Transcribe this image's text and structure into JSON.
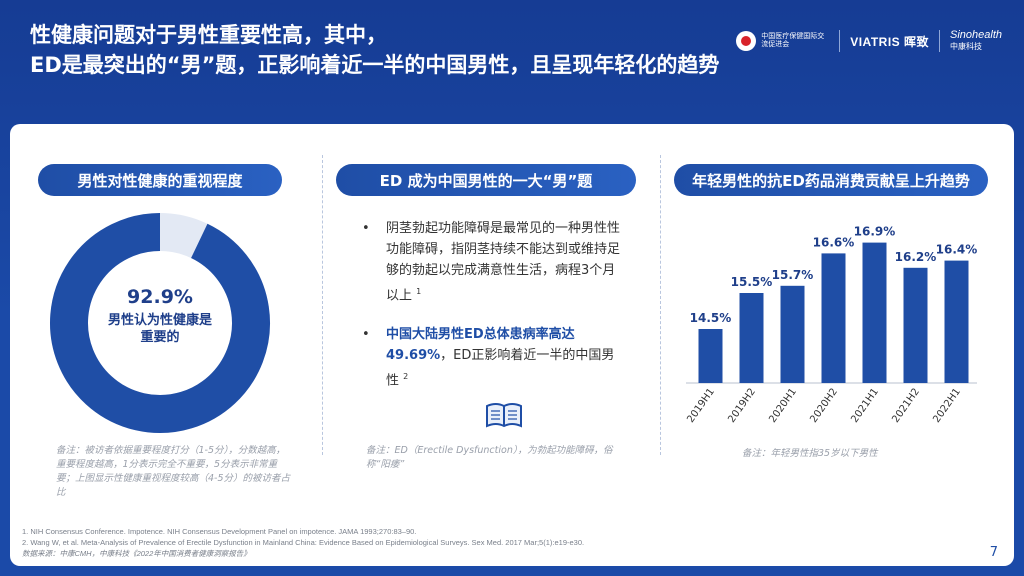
{
  "header": {
    "line1": "性健康问题对于男性重要性高，其中，",
    "line2": "ED是最突出的“男”题，正影响着近一半的中国男性，且呈现年轻化的趋势"
  },
  "logos": {
    "org_cn": "中国医疗保健国际交流促进会",
    "viatris": "VIATRIS 晖致",
    "sinohealth": "Sinohealth",
    "sinohealth_cn": "中康科技"
  },
  "left": {
    "title": "男性对性健康的重视程度",
    "value": "92.9%",
    "label": "男性认为性健康是重要的",
    "fraction": 0.929,
    "note": "备注：被访者依据重要程度打分（1-5分），分数越高，重要程度越高，1分表示完全不重要，5分表示非常重要；上图显示性健康重视程度较高（4-5分）的被访者占比"
  },
  "middle": {
    "title": "ED 成为中国男性的一大“男”题",
    "bullet1": "阴茎勃起功能障碍是最常见的一种男性性功能障碍，指阴茎持续不能达到或维持足够的勃起以完成满意性生活，病程3个月以上",
    "bullet1_ref": "1",
    "bullet2_hl": "中国大陆男性ED总体患病率高达49.69%",
    "bullet2_rest": "，ED正影响着近一半的中国男性",
    "bullet2_ref": "2",
    "note": "备注：ED（Erectile Dysfunction），为勃起功能障碍，俗称“阳痿”"
  },
  "right": {
    "title": "年轻男性的抗ED药品消费贡献呈上升趋势",
    "note": "备注：年轻男性指35岁以下男性"
  },
  "chart_data": {
    "type": "bar",
    "title": "年轻男性的抗ED药品消费贡献呈上升趋势",
    "categories": [
      "2019H1",
      "2019H2",
      "2020H1",
      "2020H2",
      "2021H1",
      "2021H2",
      "2022H1"
    ],
    "values": [
      14.5,
      15.5,
      15.7,
      16.6,
      16.9,
      16.2,
      16.4
    ],
    "value_labels": [
      "14.5%",
      "15.5%",
      "15.7%",
      "16.6%",
      "16.9%",
      "16.2%",
      "16.4%"
    ],
    "unit": "%",
    "ylim": [
      13,
      17.5
    ],
    "grid": false,
    "color": "#1f4ea6"
  },
  "footer": {
    "ref1": "1. NIH Consensus Conference. Impotence. NIH Consensus Development Panel on impotence. JAMA 1993;270:83–90.",
    "ref2": "2. Wang W, et al. Meta-Analysis of Prevalence of Erectile Dysfunction in Mainland China: Evidence Based on Epidemiological Surveys. Sex Med. 2017 Mar;5(1):e19-e30.",
    "source": "数据来源：中康CMH，中康科技《2022年中国消费者健康洞察报告》",
    "page": "7"
  },
  "colors": {
    "primary": "#1f4ea6",
    "donut_light": "#e3e9f4",
    "background": "#1b4aa8"
  }
}
